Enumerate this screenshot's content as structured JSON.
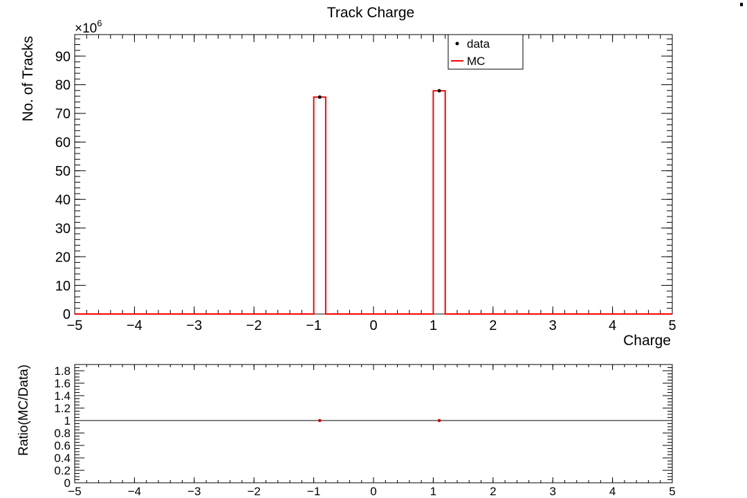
{
  "chart_data": [
    {
      "type": "bar",
      "title": "Track Charge",
      "xlabel": "Charge",
      "ylabel": "No. of Tracks",
      "y_multiplier_label": "×10",
      "y_multiplier_exponent": "6",
      "xlim": [
        -5,
        5
      ],
      "ylim": [
        0,
        97.5
      ],
      "y_scale_note": "values in units of 1e6",
      "x_ticks": [
        -5,
        -4,
        -3,
        -2,
        -1,
        0,
        1,
        2,
        3,
        4,
        5
      ],
      "x_tick_labels": [
        "−5",
        "−4",
        "−3",
        "−2",
        "−1",
        "0",
        "1",
        "2",
        "3",
        "4",
        "5"
      ],
      "y_ticks": [
        0,
        10,
        20,
        30,
        40,
        50,
        60,
        70,
        80,
        90
      ],
      "y_tick_labels": [
        "0",
        "10",
        "20",
        "30",
        "40",
        "50",
        "60",
        "70",
        "80",
        "90"
      ],
      "bins": [
        [
          -1.0,
          -0.8
        ],
        [
          1.0,
          1.2
        ]
      ],
      "series": [
        {
          "name": "data",
          "style": "points",
          "color": "#000000",
          "x": [
            -0.9,
            1.1
          ],
          "values": [
            75.7,
            77.9
          ]
        },
        {
          "name": "MC",
          "style": "step",
          "color": "#ff0000",
          "x": [
            -0.9,
            1.1
          ],
          "values": [
            75.7,
            77.9
          ]
        }
      ],
      "legend": {
        "position": "top-right",
        "entries": [
          "data",
          "MC"
        ]
      }
    },
    {
      "type": "scatter",
      "xlabel": "",
      "ylabel": "Ratio(MC/Data)",
      "xlim": [
        -5,
        5
      ],
      "ylim": [
        0,
        1.9
      ],
      "reference_line": 1,
      "x_ticks": [
        -5,
        -4,
        -3,
        -2,
        -1,
        0,
        1,
        2,
        3,
        4,
        5
      ],
      "x_tick_labels": [
        "−5",
        "−4",
        "−3",
        "−2",
        "−1",
        "0",
        "1",
        "2",
        "3",
        "4",
        "5"
      ],
      "y_ticks": [
        0,
        0.2,
        0.4,
        0.6,
        0.8,
        1,
        1.2,
        1.4,
        1.6,
        1.8
      ],
      "y_tick_labels": [
        "0",
        "0.2",
        "0.4",
        "0.6",
        "0.8",
        "1",
        "1.2",
        "1.4",
        "1.6",
        "1.8"
      ],
      "series": [
        {
          "color": "#cc0000",
          "x": [
            -0.9,
            1.1
          ],
          "values": [
            1.0,
            1.0
          ]
        }
      ]
    }
  ]
}
